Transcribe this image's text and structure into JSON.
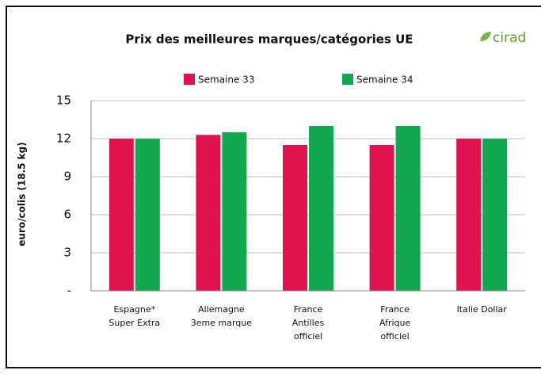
{
  "chart_data": {
    "type": "bar",
    "title": "Prix des meilleures marques/catégories  UE",
    "logo": "cirad",
    "y_label": "euro/colis (18.5 kg)",
    "categories": [
      "Espagne*\nSuper Extra",
      "Allemagne\n3eme marque",
      "France\nAntilles\nofficiel",
      "France\nAfrique\nofficiel",
      "Italie Dollar"
    ],
    "series": [
      {
        "name": "Semaine 33",
        "color": "#e0134f",
        "values": [
          12,
          12.3,
          11.5,
          11.5,
          12
        ]
      },
      {
        "name": "Semaine 34",
        "color": "#12a84f",
        "values": [
          12,
          12.5,
          13,
          13,
          12
        ]
      }
    ],
    "ylim": [
      0,
      15
    ],
    "yticks": [
      {
        "value": 0,
        "label": "-"
      },
      3,
      6,
      9,
      12,
      15
    ],
    "grid": true
  }
}
